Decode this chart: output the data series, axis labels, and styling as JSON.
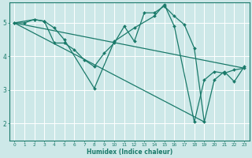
{
  "xlabel": "Humidex (Indice chaleur)",
  "bg_color": "#cde8e8",
  "line_color": "#1a7a6a",
  "grid_color": "#ffffff",
  "xlim": [
    -0.5,
    23.5
  ],
  "ylim": [
    1.5,
    5.6
  ],
  "yticks": [
    2,
    3,
    4,
    5
  ],
  "xticks": [
    0,
    1,
    2,
    3,
    4,
    5,
    6,
    7,
    8,
    9,
    10,
    11,
    12,
    13,
    14,
    15,
    16,
    17,
    18,
    19,
    20,
    21,
    22,
    23
  ],
  "lines": [
    {
      "x": [
        0,
        1,
        2,
        3,
        4,
        5,
        6,
        7,
        8,
        9,
        10,
        11,
        12,
        13,
        14,
        15,
        16,
        17,
        18,
        19,
        20,
        21,
        22,
        23
      ],
      "y": [
        5.0,
        5.0,
        5.1,
        5.05,
        4.4,
        4.4,
        4.2,
        3.9,
        3.7,
        4.1,
        4.4,
        4.9,
        4.45,
        5.3,
        5.3,
        5.5,
        5.2,
        4.95,
        4.25,
        2.05,
        3.3,
        3.55,
        3.25,
        3.7
      ]
    },
    {
      "x": [
        0,
        2,
        3,
        4,
        5,
        8,
        10,
        12,
        14,
        15,
        16,
        18,
        19,
        20,
        21,
        22,
        23
      ],
      "y": [
        5.0,
        5.1,
        5.05,
        4.85,
        4.5,
        3.05,
        4.45,
        4.85,
        5.2,
        5.55,
        4.9,
        2.05,
        3.3,
        3.55,
        3.5,
        3.6,
        3.65
      ]
    },
    {
      "x": [
        0,
        23
      ],
      "y": [
        5.0,
        3.65
      ]
    },
    {
      "x": [
        0,
        19
      ],
      "y": [
        5.0,
        2.05
      ]
    }
  ]
}
